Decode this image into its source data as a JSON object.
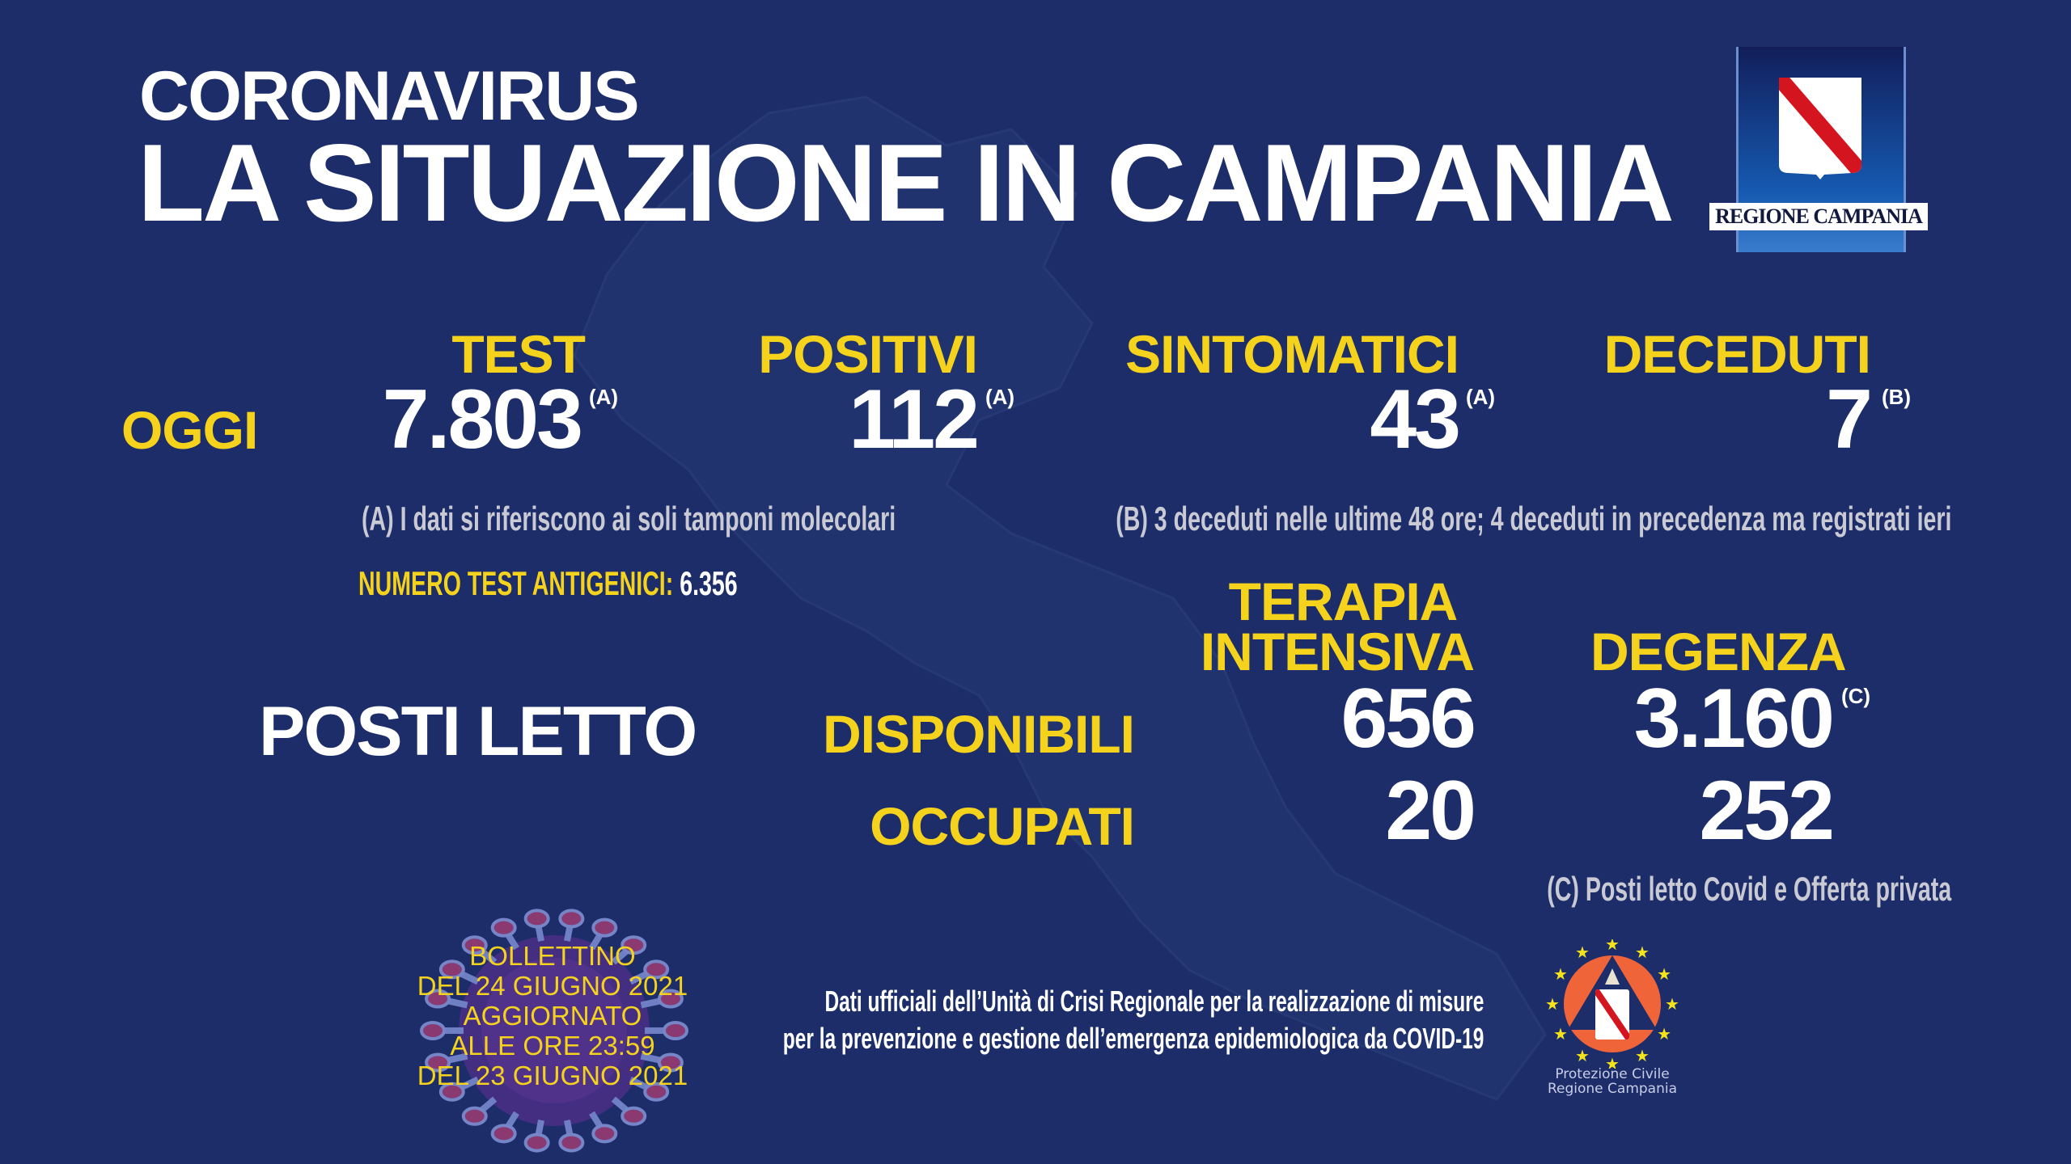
{
  "header": {
    "kicker": "CORONAVIRUS",
    "title": "LA SITUAZIONE IN CAMPANIA",
    "logo_text": "REGIONE CAMPANIA"
  },
  "oggi": {
    "label": "OGGI",
    "stats": [
      {
        "label": "TEST",
        "value": "7.803",
        "note": "(A)"
      },
      {
        "label": "POSITIVI",
        "value": "112",
        "note": "(A)"
      },
      {
        "label": "SINTOMATICI",
        "value": "43",
        "note": "(A)"
      },
      {
        "label": "DECEDUTI",
        "value": "7",
        "note": "(B)"
      }
    ],
    "note_a": "(A) I dati si riferiscono ai soli tamponi molecolari",
    "note_b": "(B) 3 deceduti nelle ultime 48 ore; 4 deceduti in precedenza ma registrati ieri",
    "antigen_label": "NUMERO TEST ANTIGENICI:",
    "antigen_value": "6.356"
  },
  "posti_letto": {
    "title": "POSTI LETTO",
    "col_ti_line1": "TERAPIA",
    "col_ti_line2": "INTENSIVA",
    "col_degenza": "DEGENZA",
    "row_disponibili": "DISPONIBILI",
    "row_occupati": "OCCUPATI",
    "ti_disponibili": "656",
    "ti_occupati": "20",
    "degenza_disponibili": "3.160",
    "degenza_disponibili_note": "(C)",
    "degenza_occupati": "252",
    "note_c": "(C) Posti letto Covid e Offerta privata"
  },
  "bollettino": {
    "lines": [
      "BOLLETTINO",
      "DEL 24 GIUGNO 2021",
      "AGGIORNATO",
      "ALLE ORE 23:59",
      "DEL 23 GIUGNO 2021"
    ]
  },
  "footer": {
    "source_line1": "Dati ufficiali dell’Unità di Crisi Regionale per la realizzazione di misure",
    "source_line2": "per la prevenzione e gestione dell’emergenza epidemiologica da COVID-19",
    "pc_line1": "Protezione Civile",
    "pc_line2": "Regione Campania"
  },
  "colors": {
    "background": "#1c2d6a",
    "accent": "#f5d21c",
    "note": "#c9cad3",
    "shield_red": "#d4141e"
  }
}
